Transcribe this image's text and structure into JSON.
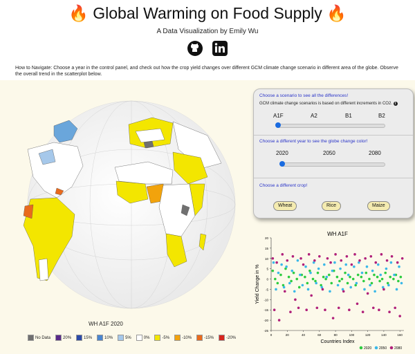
{
  "header": {
    "title": "🔥 Global Warming on Food Supply 🔥",
    "subtitle": "A Data Visualization by Emily Wu",
    "social": [
      "github-icon",
      "linkedin-icon"
    ],
    "how_to": "How to Navigate: Choose a year in the control panel, and check out how the crop yield changes over different GCM climate change scenario in different area of the globe. Observe the overall trend in the scatterplot below."
  },
  "globe": {
    "caption": "WH A1F 2020",
    "legend": [
      {
        "label": "No Data",
        "color": "#707070"
      },
      {
        "label": "20%",
        "color": "#5a2a8a"
      },
      {
        "label": "15%",
        "color": "#2b4aa8"
      },
      {
        "label": "10%",
        "color": "#4a86d0"
      },
      {
        "label": "5%",
        "color": "#a6c8ea"
      },
      {
        "label": "0%",
        "color": "#ffffff"
      },
      {
        "label": "-5%",
        "color": "#f3e600"
      },
      {
        "label": "-10%",
        "color": "#f2a30c"
      },
      {
        "label": "-15%",
        "color": "#e96a1c"
      },
      {
        "label": "-20%",
        "color": "#d7261e"
      }
    ]
  },
  "controls": {
    "scenario": {
      "title": "Choose a scenario to see all the differences!",
      "note": "GCM climate change scenarios is based on different increments in CO2.",
      "info_icon": "info-icon",
      "options": [
        "A1F",
        "A2",
        "B1",
        "B2"
      ],
      "selected": "A1F"
    },
    "year": {
      "title": "Choose a different year to see the globe change color!",
      "options": [
        "2020",
        "2050",
        "2080"
      ],
      "selected": "2020"
    },
    "crop": {
      "title": "Choose a different crop!",
      "options": [
        "Wheat",
        "Rice",
        "Maize"
      ],
      "selected": "Wheat"
    }
  },
  "chart_data": {
    "type": "scatter",
    "title": "WH A1F",
    "xlabel": "Countries Index",
    "ylabel": "Yield Change in %",
    "xlim": [
      0,
      165
    ],
    "ylim": [
      -25,
      20
    ],
    "xticks": [
      0,
      20,
      40,
      60,
      80,
      100,
      120,
      140,
      160
    ],
    "yticks": [
      -25,
      -20,
      -15,
      -10,
      -5,
      0,
      5,
      10,
      15,
      20
    ],
    "legend_position": "bottom-right",
    "series": [
      {
        "name": "2020",
        "color": "#2ecc40",
        "points": [
          [
            2,
            4
          ],
          [
            5,
            0
          ],
          [
            8,
            -2
          ],
          [
            12,
            2
          ],
          [
            15,
            -3
          ],
          [
            18,
            5
          ],
          [
            22,
            1
          ],
          [
            25,
            -1
          ],
          [
            28,
            3
          ],
          [
            32,
            0
          ],
          [
            35,
            -4
          ],
          [
            38,
            2
          ],
          [
            42,
            1
          ],
          [
            45,
            -2
          ],
          [
            48,
            4
          ],
          [
            52,
            0
          ],
          [
            55,
            -1
          ],
          [
            58,
            3
          ],
          [
            62,
            -3
          ],
          [
            65,
            1
          ],
          [
            68,
            0
          ],
          [
            72,
            2
          ],
          [
            75,
            -2
          ],
          [
            78,
            4
          ],
          [
            82,
            1
          ],
          [
            85,
            -1
          ],
          [
            88,
            0
          ],
          [
            92,
            3
          ],
          [
            95,
            -2
          ],
          [
            98,
            1
          ],
          [
            102,
            0
          ],
          [
            105,
            -3
          ],
          [
            108,
            2
          ],
          [
            112,
            1
          ],
          [
            115,
            -1
          ],
          [
            118,
            3
          ],
          [
            122,
            0
          ],
          [
            125,
            -2
          ],
          [
            128,
            2
          ],
          [
            132,
            1
          ],
          [
            135,
            -1
          ],
          [
            138,
            0
          ],
          [
            142,
            3
          ],
          [
            145,
            -2
          ],
          [
            148,
            1
          ],
          [
            152,
            0
          ],
          [
            155,
            2
          ],
          [
            158,
            -1
          ],
          [
            161,
            1
          ]
        ]
      },
      {
        "name": "2050",
        "color": "#3ab8e8",
        "points": [
          [
            3,
            8
          ],
          [
            6,
            -5
          ],
          [
            9,
            3
          ],
          [
            13,
            7
          ],
          [
            16,
            -4
          ],
          [
            19,
            6
          ],
          [
            23,
            -2
          ],
          [
            26,
            4
          ],
          [
            29,
            -6
          ],
          [
            33,
            9
          ],
          [
            36,
            2
          ],
          [
            39,
            -3
          ],
          [
            43,
            6
          ],
          [
            46,
            -5
          ],
          [
            49,
            3
          ],
          [
            53,
            8
          ],
          [
            56,
            -2
          ],
          [
            59,
            5
          ],
          [
            63,
            -4
          ],
          [
            66,
            7
          ],
          [
            69,
            1
          ],
          [
            73,
            -6
          ],
          [
            76,
            4
          ],
          [
            79,
            8
          ],
          [
            83,
            -3
          ],
          [
            86,
            5
          ],
          [
            89,
            -5
          ],
          [
            93,
            7
          ],
          [
            96,
            2
          ],
          [
            99,
            -4
          ],
          [
            103,
            6
          ],
          [
            106,
            -2
          ],
          [
            109,
            8
          ],
          [
            113,
            3
          ],
          [
            116,
            -5
          ],
          [
            119,
            6
          ],
          [
            123,
            -3
          ],
          [
            126,
            4
          ],
          [
            129,
            -6
          ],
          [
            133,
            7
          ],
          [
            136,
            2
          ],
          [
            139,
            -4
          ],
          [
            143,
            5
          ],
          [
            146,
            -3
          ],
          [
            149,
            8
          ],
          [
            153,
            2
          ],
          [
            156,
            -5
          ],
          [
            159,
            6
          ],
          [
            162,
            -2
          ]
        ]
      },
      {
        "name": "2080",
        "color": "#b0207a",
        "points": [
          [
            2,
            10
          ],
          [
            4,
            -15
          ],
          [
            7,
            8
          ],
          [
            10,
            -20
          ],
          [
            14,
            12
          ],
          [
            17,
            -6
          ],
          [
            20,
            9
          ],
          [
            24,
            -16
          ],
          [
            27,
            11
          ],
          [
            30,
            -10
          ],
          [
            34,
            -14
          ],
          [
            37,
            10
          ],
          [
            40,
            7
          ],
          [
            44,
            -15
          ],
          [
            47,
            12
          ],
          [
            50,
            -8
          ],
          [
            54,
            9
          ],
          [
            57,
            -14
          ],
          [
            60,
            11
          ],
          [
            64,
            -5
          ],
          [
            67,
            -15
          ],
          [
            70,
            10
          ],
          [
            74,
            8
          ],
          [
            77,
            -19
          ],
          [
            80,
            12
          ],
          [
            84,
            -14
          ],
          [
            87,
            9
          ],
          [
            90,
            -6
          ],
          [
            94,
            11
          ],
          [
            97,
            -15
          ],
          [
            100,
            7
          ],
          [
            104,
            12
          ],
          [
            107,
            -12
          ],
          [
            110,
            9
          ],
          [
            114,
            -16
          ],
          [
            117,
            10
          ],
          [
            120,
            -7
          ],
          [
            124,
            11
          ],
          [
            127,
            -14
          ],
          [
            130,
            8
          ],
          [
            134,
            -15
          ],
          [
            137,
            12
          ],
          [
            140,
            -5
          ],
          [
            144,
            9
          ],
          [
            147,
            -16
          ],
          [
            150,
            11
          ],
          [
            154,
            -14
          ],
          [
            157,
            8
          ],
          [
            160,
            -18
          ],
          [
            163,
            10
          ]
        ]
      }
    ]
  }
}
